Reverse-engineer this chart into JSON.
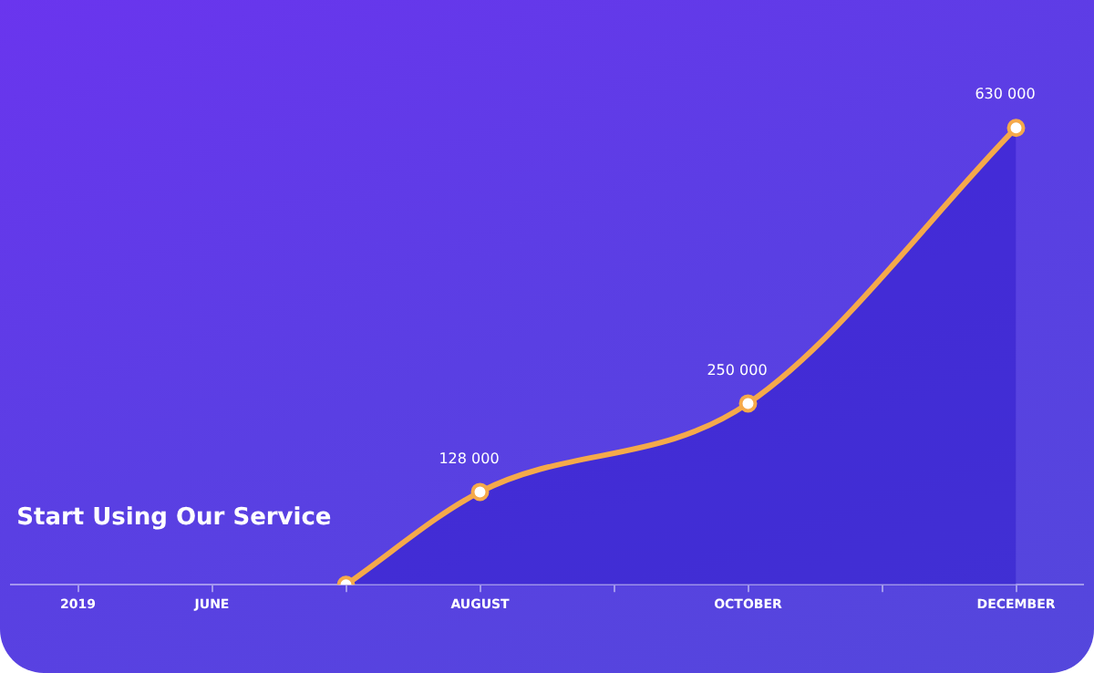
{
  "chart_data": {
    "type": "area",
    "categories": [
      "2019",
      "JUNE",
      null,
      "AUGUST",
      null,
      "OCTOBER",
      null,
      "DECEMBER"
    ],
    "series": [
      {
        "color": "#f5a94a",
        "values": [
          null,
          null,
          0,
          128000,
          null,
          250000,
          null,
          630000
        ],
        "value_labels": [
          null,
          null,
          null,
          "128 000",
          null,
          "250 000",
          null,
          "630 000"
        ]
      }
    ],
    "annotations": [
      "Start Using Our Service"
    ],
    "marker": "circle",
    "legend": false,
    "grid": false
  }
}
